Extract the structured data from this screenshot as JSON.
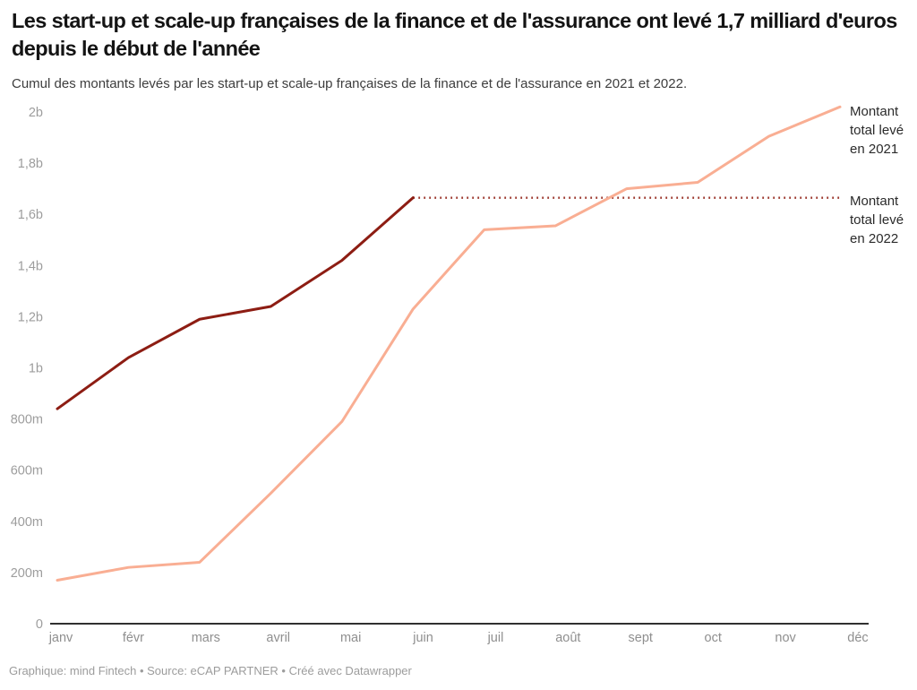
{
  "chart_data": {
    "type": "line",
    "title": "Les start-up et scale-up françaises de la finance et de l'assurance ont levé 1,7 milliard d'euros depuis le début de l'année",
    "subtitle": "Cumul des montants levés par les start-up et scale-up françaises de la finance et de l'assurance en 2021 et 2022.",
    "x_categories": [
      "janv",
      "févr",
      "mars",
      "avril",
      "mai",
      "juin",
      "juil",
      "août",
      "sept",
      "oct",
      "nov",
      "déc"
    ],
    "y_tick_labels": [
      "2b",
      "1,8b",
      "1,6b",
      "1,4b",
      "1,2b",
      "1b",
      "800m",
      "600m",
      "400m",
      "200m",
      "0"
    ],
    "y_tick_values": [
      2000,
      1800,
      1600,
      1400,
      1200,
      1000,
      800,
      600,
      400,
      200,
      0
    ],
    "ylim_millions": [
      0,
      2000
    ],
    "grid": false,
    "legend_position": "direct-labels-right",
    "series": [
      {
        "name": "Montant total levé en 2021",
        "color": "#f9ae93",
        "line_style": "solid",
        "values_millions": [
          170,
          220,
          240,
          510,
          790,
          1230,
          1540,
          1555,
          1700,
          1725,
          1905,
          2020
        ]
      },
      {
        "name": "Montant total levé en 2022",
        "color": "#8d1d13",
        "line_style": "solid",
        "values_millions": [
          840,
          1040,
          1190,
          1240,
          1420,
          1665
        ],
        "dotted_extension": {
          "value_millions": 1665,
          "from_index": 5,
          "to_index": 11,
          "color": "#9b352b"
        }
      }
    ],
    "colors": {
      "axis_line": "#303030",
      "y_tick_text": "#9d9d9d",
      "x_tick_text": "#8f8f8f"
    },
    "footer": "Graphique: mind Fintech • Source: eCAP PARTNER • Créé avec Datawrapper"
  }
}
